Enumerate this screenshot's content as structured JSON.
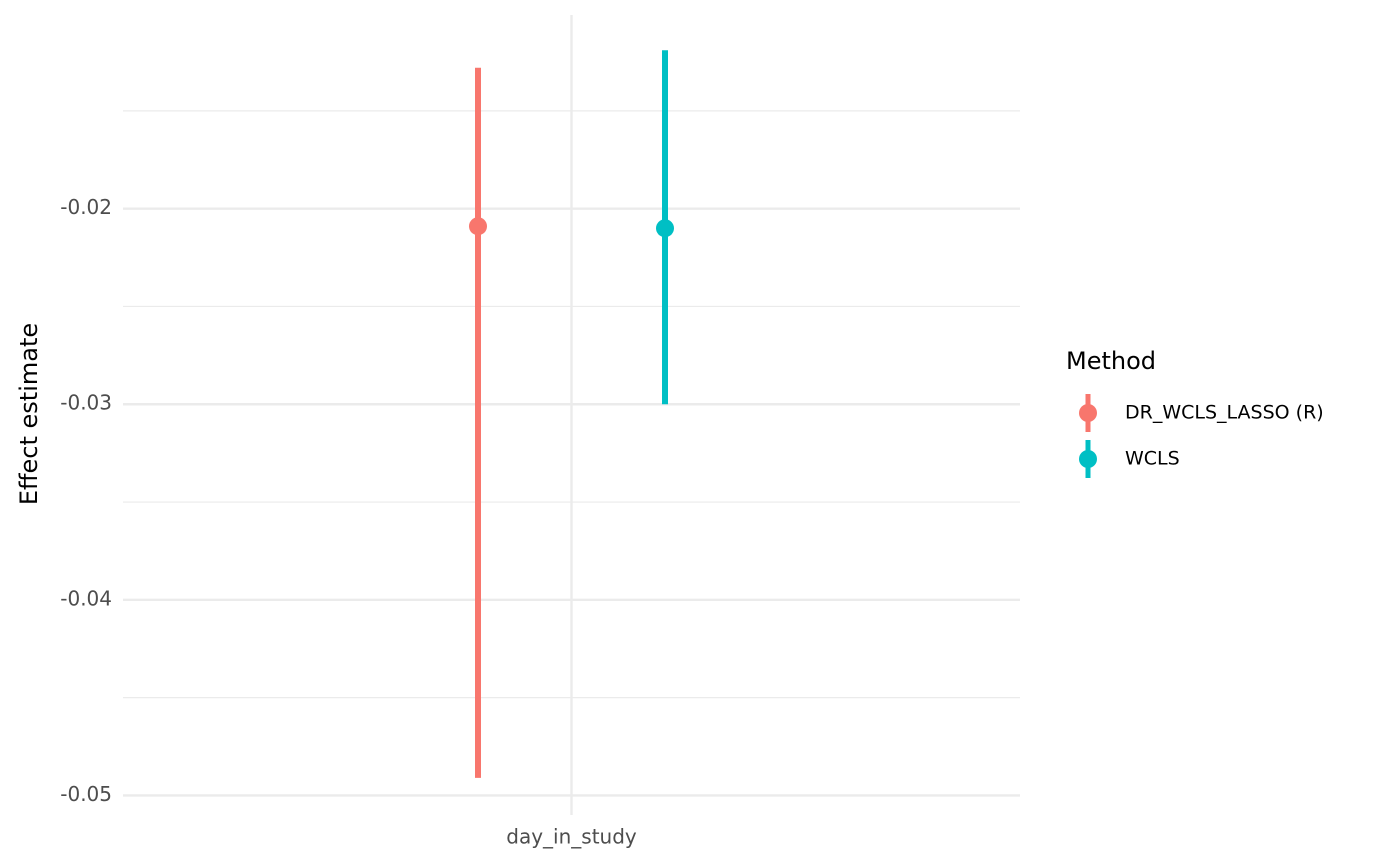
{
  "chart_data": {
    "type": "pointrange",
    "y_label": "Effect estimate",
    "categories": [
      "day_in_study"
    ],
    "legend_title": "Method",
    "legend_position": "right",
    "series": [
      {
        "name": "DR_WCLS_LASSO (R)",
        "color": "#f8766d",
        "values": [
          -0.0209
        ],
        "lower": [
          -0.0491
        ],
        "upper": [
          -0.0128
        ]
      },
      {
        "name": "WCLS",
        "color": "#00bfc4",
        "values": [
          -0.021
        ],
        "lower": [
          -0.03
        ],
        "upper": [
          -0.0119
        ]
      }
    ],
    "ylim": [
      -0.051,
      -0.0101
    ],
    "yticks": [
      -0.05,
      -0.04,
      -0.03,
      -0.02
    ],
    "minor_yticks": [
      -0.045,
      -0.035,
      -0.025,
      -0.015
    ],
    "grid": true
  }
}
